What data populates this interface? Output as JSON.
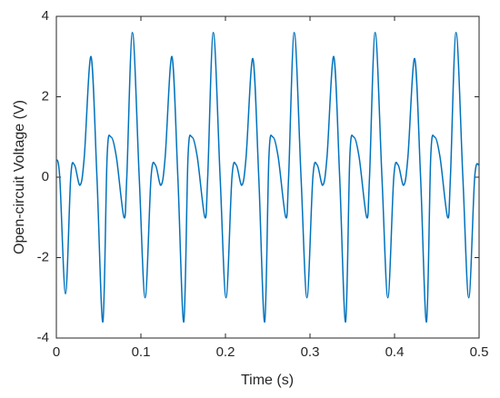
{
  "chart_data": {
    "type": "line",
    "xlabel": "Time (s)",
    "ylabel": "Open-circuit Voltage (V)",
    "x": [
      0,
      0.004,
      0.0108,
      0.017,
      0.0215,
      0.028,
      0.033,
      0.041,
      0.048,
      0.055,
      0.06,
      0.0645,
      0.071,
      0.08,
      0.0833,
      0.09,
      0.098,
      0.105,
      0.112,
      0.1172,
      0.1237,
      0.1287,
      0.1367,
      0.1437,
      0.1507,
      0.1557,
      0.1602,
      0.1667,
      0.1757,
      0.179,
      0.1857,
      0.1937,
      0.2007,
      0.2077,
      0.2129,
      0.2194,
      0.2244,
      0.2324,
      0.2394,
      0.2464,
      0.2514,
      0.2559,
      0.2624,
      0.2714,
      0.2747,
      0.2814,
      0.2894,
      0.2964,
      0.3034,
      0.3086,
      0.3151,
      0.3201,
      0.3281,
      0.3351,
      0.3421,
      0.3471,
      0.3516,
      0.3581,
      0.3671,
      0.3704,
      0.3771,
      0.3851,
      0.3921,
      0.3991,
      0.4043,
      0.4108,
      0.4158,
      0.4238,
      0.4308,
      0.4378,
      0.4428,
      0.4473,
      0.4538,
      0.4628,
      0.4661,
      0.4728,
      0.4808,
      0.4878,
      0.4948,
      0.5
    ],
    "series": [
      {
        "name": "Voltage",
        "color": "#0072bd",
        "values": [
          0.45,
          0,
          -2.9,
          0,
          0.3,
          -0.2,
          0.5,
          3.0,
          0,
          -3.6,
          0.5,
          1.0,
          0.5,
          -1.0,
          0,
          3.6,
          0,
          -3.0,
          0,
          0.3,
          -0.2,
          0.5,
          3.0,
          0,
          -3.6,
          0.5,
          1.0,
          0.5,
          -1.0,
          0,
          3.6,
          0,
          -3.0,
          0,
          0.3,
          -0.2,
          0.5,
          2.95,
          0,
          -3.6,
          0.5,
          1.0,
          0.5,
          -1.0,
          0,
          3.6,
          0,
          -3.0,
          0,
          0.3,
          -0.2,
          0.5,
          3.0,
          0,
          -3.6,
          0.5,
          1.0,
          0.5,
          -1.0,
          0,
          3.6,
          0,
          -3.0,
          0,
          0.3,
          -0.2,
          0.5,
          2.95,
          0,
          -3.6,
          0.5,
          1.0,
          0.5,
          -1.0,
          0,
          3.6,
          0,
          -3.0,
          0,
          0.3
        ]
      }
    ],
    "xlim": [
      0,
      0.5
    ],
    "xticks": [
      0,
      0.1,
      0.2,
      0.3,
      0.4,
      0.5
    ],
    "ylim": [
      -4,
      4
    ],
    "yticks": [
      -4,
      -2,
      0,
      2,
      4
    ],
    "grid": false
  }
}
